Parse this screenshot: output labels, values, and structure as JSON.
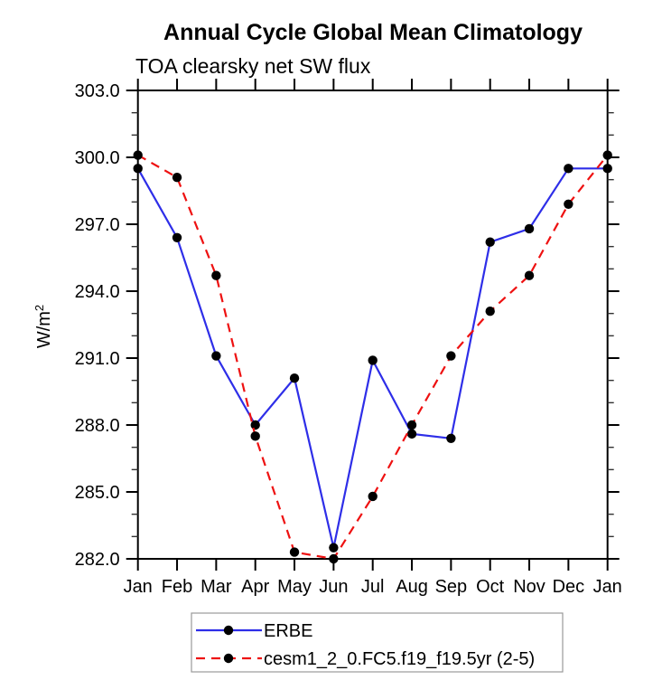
{
  "chart_data": {
    "type": "line",
    "title": "Annual Cycle Global Mean Climatology",
    "subtitle": "TOA clearsky net SW flux",
    "ylabel": {
      "base": "W/m",
      "sup": "2"
    },
    "categories": [
      "Jan",
      "Feb",
      "Mar",
      "Apr",
      "May",
      "Jun",
      "Jul",
      "Aug",
      "Sep",
      "Oct",
      "Nov",
      "Dec",
      "Jan"
    ],
    "ylim": [
      282.0,
      303.0
    ],
    "ytick_major": 3,
    "ytick_minor": 1,
    "ytick_labels": [
      "303.0",
      "300.0",
      "297.0",
      "294.0",
      "291.0",
      "288.0",
      "285.0",
      "282.0"
    ],
    "grid": false,
    "legend_position": "bottom",
    "frame_color": "#000000",
    "marker_shape": "filled-circle",
    "series": [
      {
        "name": "ERBE",
        "color": "#2e2ee8",
        "style": "solid",
        "marker_color": "#000000",
        "values": [
          299.5,
          296.4,
          291.1,
          288.0,
          290.1,
          282.5,
          290.9,
          287.6,
          287.4,
          296.2,
          296.8,
          299.5,
          299.5
        ]
      },
      {
        "name": "cesm1_2_0.FC5.f19_f19.5yr (2-5)",
        "color": "#ee1111",
        "style": "dashed",
        "marker_color": "#000000",
        "values": [
          300.1,
          299.1,
          294.7,
          287.5,
          282.3,
          282.0,
          284.8,
          288.0,
          291.1,
          293.1,
          294.7,
          297.9,
          300.1
        ]
      }
    ]
  }
}
